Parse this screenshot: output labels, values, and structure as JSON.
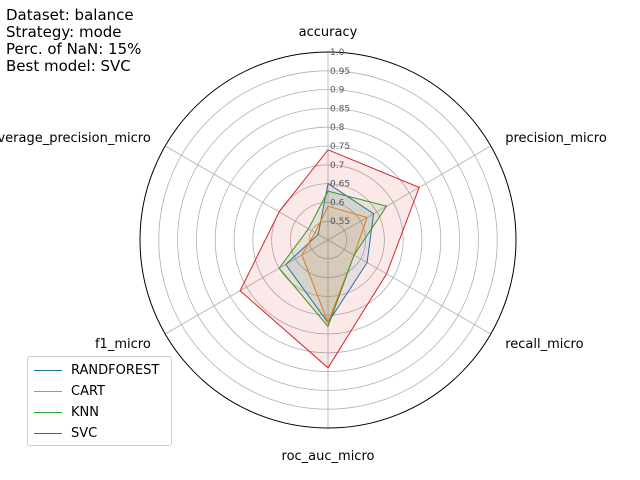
{
  "info": {
    "dataset": "Dataset: balance",
    "strategy": "Strategy: mode",
    "nan": "Perc. of NaN: 15%",
    "best": "Best model: SVC"
  },
  "chart_data": {
    "type": "radar",
    "axes": [
      "accuracy",
      "precision_micro",
      "recall_micro",
      "roc_auc_micro",
      "f1_micro",
      "average_precision_micro"
    ],
    "rlim": [
      0.5,
      1.0
    ],
    "rticks": [
      "0.55",
      "0.6",
      "0.65",
      "0.7",
      "0.75",
      "0.8",
      "0.85",
      "0.9",
      "0.95",
      "1.0"
    ],
    "rtick_values": [
      0.55,
      0.6,
      0.65,
      0.7,
      0.75,
      0.8,
      0.85,
      0.9,
      0.95,
      1.0
    ],
    "grid": true,
    "legend_position": "lower-left",
    "series": [
      {
        "name": "RANDFOREST",
        "color": "#1f77b4",
        "values": [
          0.65,
          0.64,
          0.62,
          0.72,
          0.63,
          0.53
        ]
      },
      {
        "name": "CART",
        "color": "#ff7f0e",
        "values": [
          0.59,
          0.62,
          0.58,
          0.72,
          0.58,
          0.54
        ]
      },
      {
        "name": "KNN",
        "color": "#2ca02c",
        "values": [
          0.63,
          0.68,
          0.58,
          0.73,
          0.65,
          0.56
        ]
      },
      {
        "name": "SVC",
        "color": "#d62728",
        "values": [
          0.74,
          0.78,
          0.68,
          0.84,
          0.77,
          0.65
        ]
      }
    ]
  }
}
